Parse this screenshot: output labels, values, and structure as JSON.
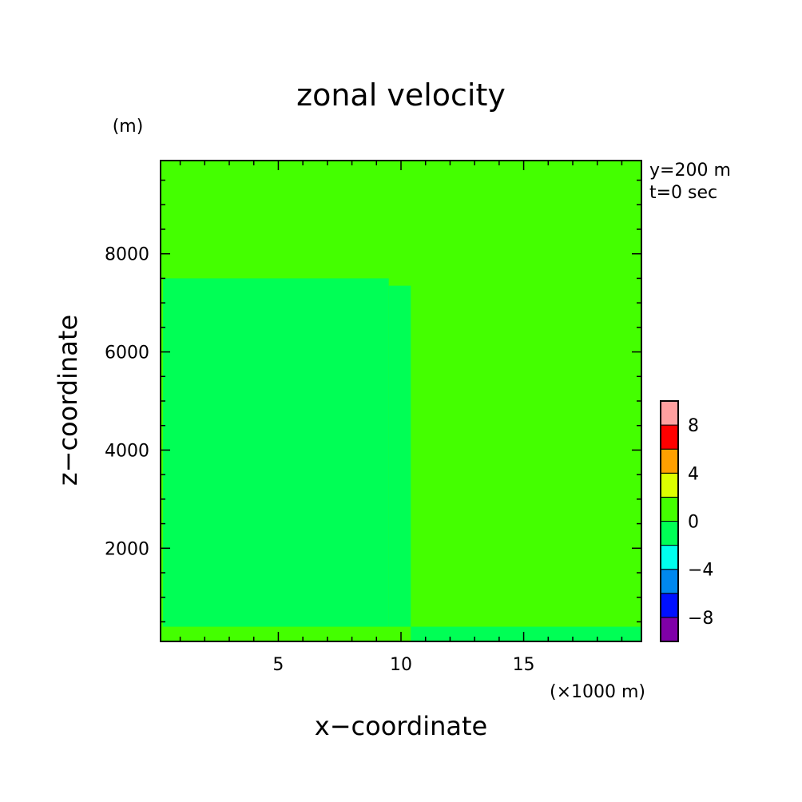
{
  "chart_data": {
    "type": "heatmap",
    "title": "zonal velocity",
    "xlabel": "x−coordinate",
    "ylabel": "z−coordinate",
    "x_unit": "(×1000 m)",
    "y_unit": "(m)",
    "annotations": [
      "y=200 m",
      "t=0 sec"
    ],
    "xlim": [
      0.2,
      19.8
    ],
    "ylim": [
      100,
      9900
    ],
    "x_ticks": [
      5,
      10,
      15
    ],
    "y_ticks": [
      2000,
      4000,
      6000,
      8000
    ],
    "x_tick_labels": [
      "5",
      "10",
      "15"
    ],
    "y_tick_labels": [
      "2000",
      "4000",
      "6000",
      "8000"
    ],
    "x_minor_step": 1,
    "y_minor_step": 500,
    "grid": false,
    "colorbar": {
      "levels": [
        -10,
        -8,
        -6,
        -4,
        -2,
        0,
        2,
        4,
        6,
        8,
        10
      ],
      "colors": [
        "#8000a8",
        "#0010ff",
        "#0088ee",
        "#00ffee",
        "#00ff55",
        "#44ff00",
        "#ddff00",
        "#ffa000",
        "#ff0000",
        "#ffa0a0"
      ],
      "tick_values": [
        -8,
        -4,
        0,
        4,
        8
      ],
      "tick_labels": [
        "−8",
        "−4",
        "0",
        "4",
        "8"
      ]
    },
    "background_value_range": [
      0,
      2
    ],
    "regions": [
      {
        "value_range": [
          -2,
          0
        ],
        "x": [
          0.3,
          9.5
        ],
        "z": [
          400,
          7500
        ]
      },
      {
        "value_range": [
          -2,
          0
        ],
        "x": [
          9.5,
          10.4
        ],
        "z": [
          400,
          7350
        ]
      },
      {
        "value_range": [
          -2,
          0
        ],
        "x": [
          10.4,
          19.8
        ],
        "z": [
          100,
          400
        ]
      }
    ]
  }
}
